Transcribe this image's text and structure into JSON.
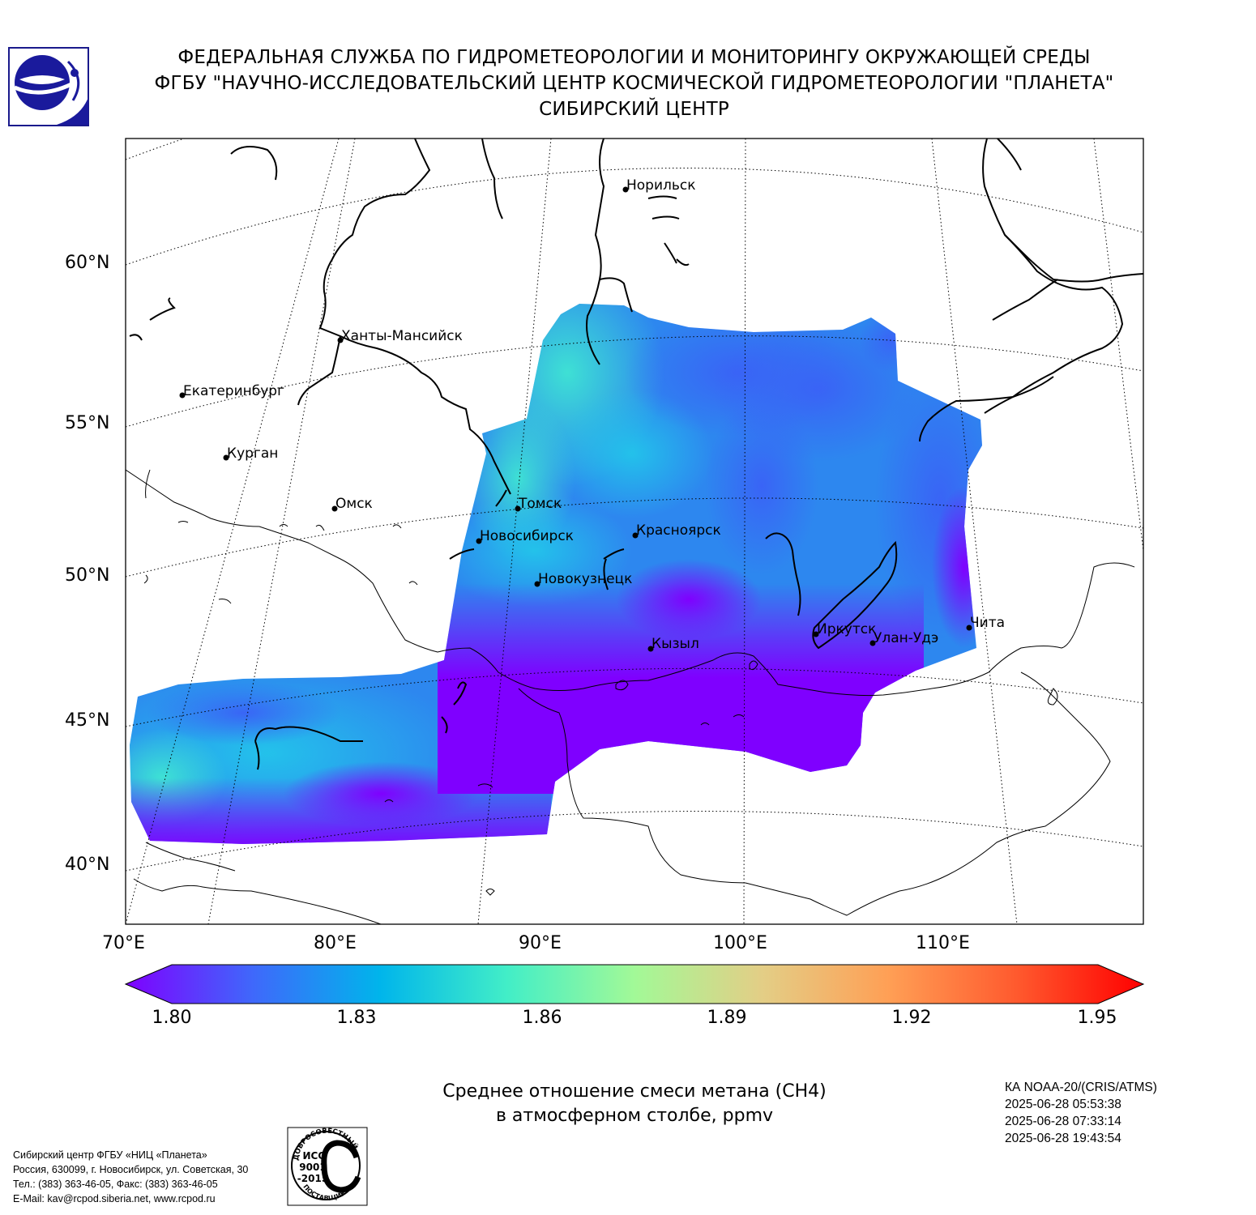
{
  "header": {
    "line1": "ФЕДЕРАЛЬНАЯ СЛУЖБА ПО ГИДРОМЕТЕОРОЛОГИИ И МОНИТОРИНГУ ОКРУЖАЮЩЕЙ СРЕДЫ",
    "line2": "ФГБУ \"НАУЧНО-ИССЛЕДОВАТЕЛЬСКИЙ ЦЕНТР КОСМИЧЕСКОЙ ГИДРОМЕТЕОРОЛОГИИ \"ПЛАНЕТА\"",
    "line3": "СИБИРСКИЙ ЦЕНТР"
  },
  "map": {
    "lat_labels": [
      "60°N",
      "55°N",
      "50°N",
      "45°N",
      "40°N"
    ],
    "lon_labels": [
      "70°E",
      "80°E",
      "90°E",
      "100°E",
      "110°E"
    ],
    "cities": [
      {
        "name": "Норильск"
      },
      {
        "name": "Ханты-Мансийск"
      },
      {
        "name": "Екатеринбург"
      },
      {
        "name": "Курган"
      },
      {
        "name": "Омск"
      },
      {
        "name": "Томск"
      },
      {
        "name": "Новосибирск"
      },
      {
        "name": "Красноярск"
      },
      {
        "name": "Новокузнецк"
      },
      {
        "name": "Иркутск"
      },
      {
        "name": "Улан-Удэ"
      },
      {
        "name": "Чита"
      },
      {
        "name": "Кызыл"
      }
    ]
  },
  "colorbar": {
    "ticks": [
      "1.80",
      "1.83",
      "1.86",
      "1.89",
      "1.92",
      "1.95"
    ],
    "colors": [
      "#7f00ff",
      "#3f68fb",
      "#00b5eb",
      "#42eec7",
      "#a2f997",
      "#e3ce86",
      "#ff9f55",
      "#ff5a2e",
      "#ff0000"
    ]
  },
  "caption": {
    "line1": "Среднее отношение смеси метана (CH4)",
    "line2": "в атмосферном столбе, ppmv"
  },
  "satellite": {
    "name": "КА NOAA-20/(CRIS/ATMS)",
    "times": [
      "2025-06-28 05:53:38",
      "2025-06-28 07:33:14",
      "2025-06-28 19:43:54"
    ]
  },
  "footer": {
    "org": "Сибирский центр ФГБУ «НИЦ «Планета»",
    "address": "Россия, 630099, г. Новосибирск, ул. Советская, 30",
    "phone": "Тел.: (383) 363-46-05, Факс: (383) 363-46-05",
    "email": "E-Mail: kav@rcpod.siberia.net, www.rcpod.ru"
  },
  "iso_badge": {
    "top": "ДОБРОСОВЕСТНЫЙ",
    "mid1": "ИСО",
    "mid2": "9001",
    "mid3": "-2015",
    "bottom": "ПОСТАВЩИК"
  }
}
